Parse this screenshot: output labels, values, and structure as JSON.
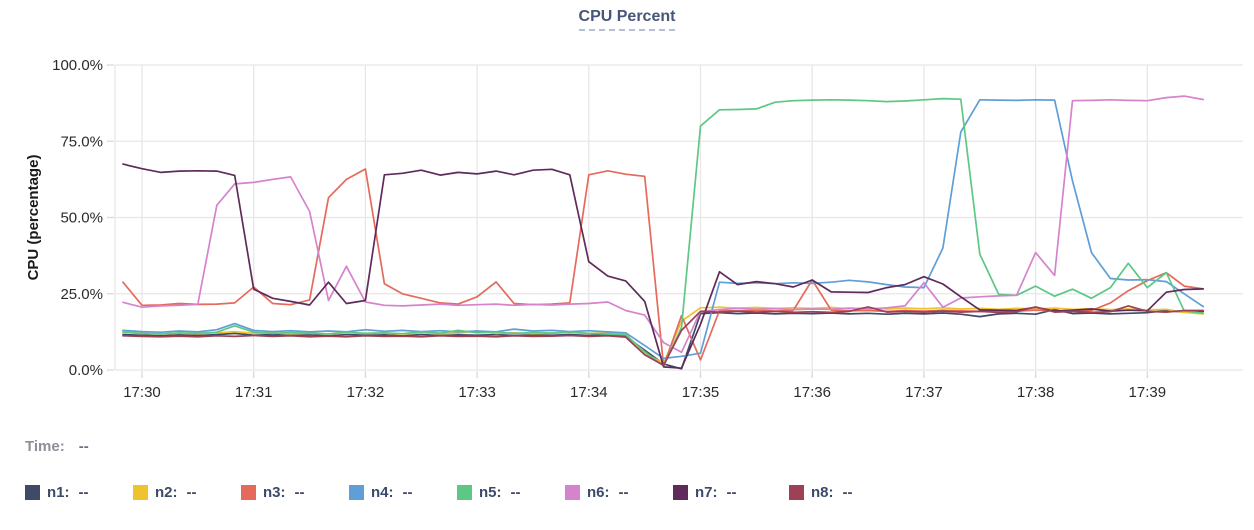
{
  "title": "CPU Percent",
  "readout": {
    "label": "Time:",
    "value": "--"
  },
  "legend": {
    "value_placeholder": "--"
  },
  "chart_data": {
    "type": "line",
    "title": "CPU Percent",
    "xlabel": "",
    "ylabel": "CPU (percentage)",
    "grid": true,
    "legend_position": "bottom",
    "ylim": [
      0,
      100
    ],
    "xlim_minutes_from_1730": [
      -0.24,
      9.86
    ],
    "y_ticks": [
      {
        "v": 0,
        "label": "0.0%"
      },
      {
        "v": 25,
        "label": "25.0%"
      },
      {
        "v": 50,
        "label": "50.0%"
      },
      {
        "v": 75,
        "label": "75.0%"
      },
      {
        "v": 100,
        "label": "100.0%"
      }
    ],
    "x_ticks": [
      {
        "t": 0,
        "label": "17:30"
      },
      {
        "t": 1,
        "label": "17:31"
      },
      {
        "t": 2,
        "label": "17:32"
      },
      {
        "t": 3,
        "label": "17:33"
      },
      {
        "t": 4,
        "label": "17:34"
      },
      {
        "t": 5,
        "label": "17:35"
      },
      {
        "t": 6,
        "label": "17:36"
      },
      {
        "t": 7,
        "label": "17:37"
      },
      {
        "t": 8,
        "label": "17:38"
      },
      {
        "t": 9,
        "label": "17:39"
      }
    ],
    "x_unit": "minutes after 17:30, samples every 10s",
    "x": [
      -0.17,
      0,
      0.17,
      0.33,
      0.5,
      0.67,
      0.83,
      1,
      1.17,
      1.33,
      1.5,
      1.67,
      1.83,
      2,
      2.17,
      2.33,
      2.5,
      2.67,
      2.83,
      3,
      3.17,
      3.33,
      3.5,
      3.67,
      3.83,
      4,
      4.17,
      4.33,
      4.5,
      4.67,
      4.83,
      5,
      5.17,
      5.33,
      5.5,
      5.67,
      5.83,
      6,
      6.17,
      6.33,
      6.5,
      6.67,
      6.83,
      7,
      7.17,
      7.33,
      7.5,
      7.67,
      7.83,
      8,
      8.17,
      8.33,
      8.5,
      8.67,
      8.83,
      9,
      9.17,
      9.33,
      9.5
    ],
    "series": [
      {
        "name": "n1",
        "color": "#3e4a68",
        "values": [
          11.6,
          11.4,
          11.2,
          11.5,
          11.3,
          11.6,
          12,
          11.4,
          11.6,
          11.3,
          11.5,
          11.2,
          11.6,
          11.4,
          11.5,
          11.2,
          11.6,
          11.3,
          11.5,
          11.4,
          11.6,
          11.3,
          11.5,
          11.4,
          11.6,
          11.3,
          11.5,
          11,
          6.5,
          2,
          0.4,
          18.5,
          18.8,
          18.5,
          18.7,
          18.4,
          18.6,
          18.5,
          18.7,
          18.4,
          18.6,
          18.3,
          18.6,
          18.4,
          18.7,
          18.3,
          17.5,
          18.4,
          18.6,
          18.3,
          19.8,
          18.5,
          18.7,
          18.4,
          18.6,
          18.8,
          19.5,
          19,
          19.2
        ]
      },
      {
        "name": "n2",
        "color": "#eec32d",
        "values": [
          12.3,
          12,
          11.8,
          12.1,
          11.9,
          12.2,
          12.6,
          12,
          12.2,
          11.9,
          12.1,
          11.8,
          12.2,
          12,
          12.1,
          11.8,
          12.2,
          11.9,
          12.1,
          12.8,
          12,
          12.2,
          11.9,
          12.1,
          12.3,
          12,
          12.2,
          11.8,
          5.5,
          2.2,
          16,
          20.4,
          20.6,
          20.3,
          20.5,
          20.2,
          20.4,
          20.2,
          20.5,
          20.1,
          20.4,
          20,
          20.3,
          20.1,
          20.4,
          20,
          20.2,
          19.9,
          20.2,
          20,
          20.3,
          19.9,
          20.1,
          19.8,
          20,
          19.7,
          19.9,
          18.9,
          18.4
        ]
      },
      {
        "name": "n3",
        "color": "#e56a5b",
        "values": [
          28.8,
          21.2,
          21.3,
          21.8,
          21.5,
          21.6,
          22,
          27.2,
          21.8,
          21.4,
          23,
          56.5,
          62.5,
          65.9,
          28.3,
          25,
          23.5,
          22,
          21.6,
          24,
          28.9,
          21.8,
          21.4,
          21.6,
          22,
          64,
          65.3,
          64.2,
          63.5,
          1.2,
          17.8,
          3.3,
          19.5,
          19.3,
          19.6,
          19.3,
          19.5,
          29.5,
          19.6,
          19.4,
          19.5,
          19.2,
          19.5,
          19.3,
          19.6,
          19.4,
          19.2,
          19.5,
          19.3,
          19.6,
          19.4,
          19.2,
          19.5,
          22,
          26,
          29.3,
          31.9,
          27.5,
          26.6
        ]
      },
      {
        "name": "n4",
        "color": "#5f9ed7",
        "values": [
          13,
          12.6,
          12.4,
          12.8,
          12.5,
          13.2,
          15.2,
          13,
          12.6,
          12.9,
          12.5,
          12.8,
          12.5,
          13.2,
          12.7,
          13,
          12.6,
          12.9,
          12.5,
          12.8,
          12.5,
          13.4,
          12.8,
          13,
          12.6,
          12.9,
          12.5,
          12.2,
          8,
          3.8,
          4.5,
          5.5,
          28.8,
          28.4,
          28.6,
          28.3,
          28.6,
          28.4,
          28.8,
          29.4,
          28.9,
          28,
          27.2,
          27,
          40,
          78,
          88.6,
          88.5,
          88.4,
          88.6,
          88.5,
          62,
          38.5,
          30,
          29.5,
          29.6,
          29,
          25,
          20.8
        ]
      },
      {
        "name": "n5",
        "color": "#5dc785",
        "values": [
          12.5,
          12,
          11.8,
          12.2,
          12,
          12.4,
          14.5,
          12.4,
          12,
          12.3,
          12,
          11.8,
          12.4,
          12,
          12.2,
          11.9,
          12.5,
          12.1,
          13,
          12.2,
          12.4,
          12,
          12.3,
          12.1,
          12.4,
          12,
          11.8,
          11.5,
          6,
          1.3,
          14,
          80,
          85.3,
          85.4,
          85.6,
          87.8,
          88.3,
          88.5,
          88.6,
          88.5,
          88.3,
          88,
          88.2,
          88.6,
          89,
          88.8,
          38,
          24.8,
          24.5,
          27.5,
          24.2,
          26.5,
          23.5,
          27,
          35,
          27,
          31.9,
          19.4,
          18.6
        ]
      },
      {
        "name": "n6",
        "color": "#d683cd",
        "values": [
          22.2,
          20.6,
          21,
          21.2,
          21.5,
          54,
          61,
          61.5,
          62.5,
          63.3,
          52,
          22.8,
          34,
          22.3,
          21.2,
          21,
          21.3,
          21.6,
          21.2,
          21.4,
          21.6,
          21.2,
          21.5,
          21.3,
          21.6,
          21.8,
          22.3,
          19.5,
          18,
          9,
          5.8,
          19.2,
          19.8,
          20.2,
          19.9,
          20.1,
          19.8,
          20,
          19.9,
          20.3,
          20,
          20.4,
          21,
          28.6,
          20.6,
          23.6,
          24,
          24.3,
          24.5,
          38.5,
          31,
          88.3,
          88.4,
          88.6,
          88.4,
          88.3,
          89.3,
          89.8,
          88.7
        ]
      },
      {
        "name": "n7",
        "color": "#5e2b5a",
        "values": [
          67.5,
          66,
          64.8,
          65.2,
          65.3,
          65.2,
          63.8,
          26.5,
          23.5,
          22.5,
          21.3,
          28.8,
          21.8,
          22.8,
          64,
          64.5,
          65.5,
          63.9,
          64.8,
          64.3,
          65.2,
          64,
          65.5,
          65.8,
          64,
          35.5,
          30.8,
          29.2,
          22.5,
          1,
          0.6,
          15,
          32.2,
          28,
          29,
          28.3,
          27.2,
          29.5,
          25.6,
          25.5,
          25.4,
          27,
          28,
          30.6,
          28.2,
          24,
          19.7,
          19.6,
          19.5,
          20.6,
          19.3,
          19.6,
          20,
          19.3,
          19.6,
          19.4,
          25.5,
          26.4,
          26.6
        ]
      },
      {
        "name": "n8",
        "color": "#9e4156",
        "values": [
          11.2,
          11,
          10.9,
          11.1,
          10.9,
          11.2,
          11,
          11.3,
          11,
          11.2,
          10.9,
          11.1,
          10.9,
          11.2,
          11,
          11.1,
          10.9,
          11.2,
          11,
          11.1,
          10.9,
          11.2,
          11,
          11.1,
          11.3,
          11,
          11.2,
          10.8,
          5,
          1.5,
          13,
          19.2,
          19,
          19.3,
          19,
          19.2,
          18.9,
          19.1,
          18.9,
          19.2,
          20.7,
          19,
          19.2,
          19,
          19.3,
          19,
          19.2,
          18.9,
          19.1,
          20.7,
          19,
          19.2,
          18.9,
          19.1,
          21,
          19.2,
          19,
          19.5,
          19.5
        ]
      }
    ]
  },
  "colors": {
    "title": "#46567a",
    "grid": "#e7e7e7",
    "tick": "#d8d8d8",
    "axis_text": "#2b2b2b",
    "legend_text": "#3c4a6a",
    "time_label": "#8d9099"
  }
}
